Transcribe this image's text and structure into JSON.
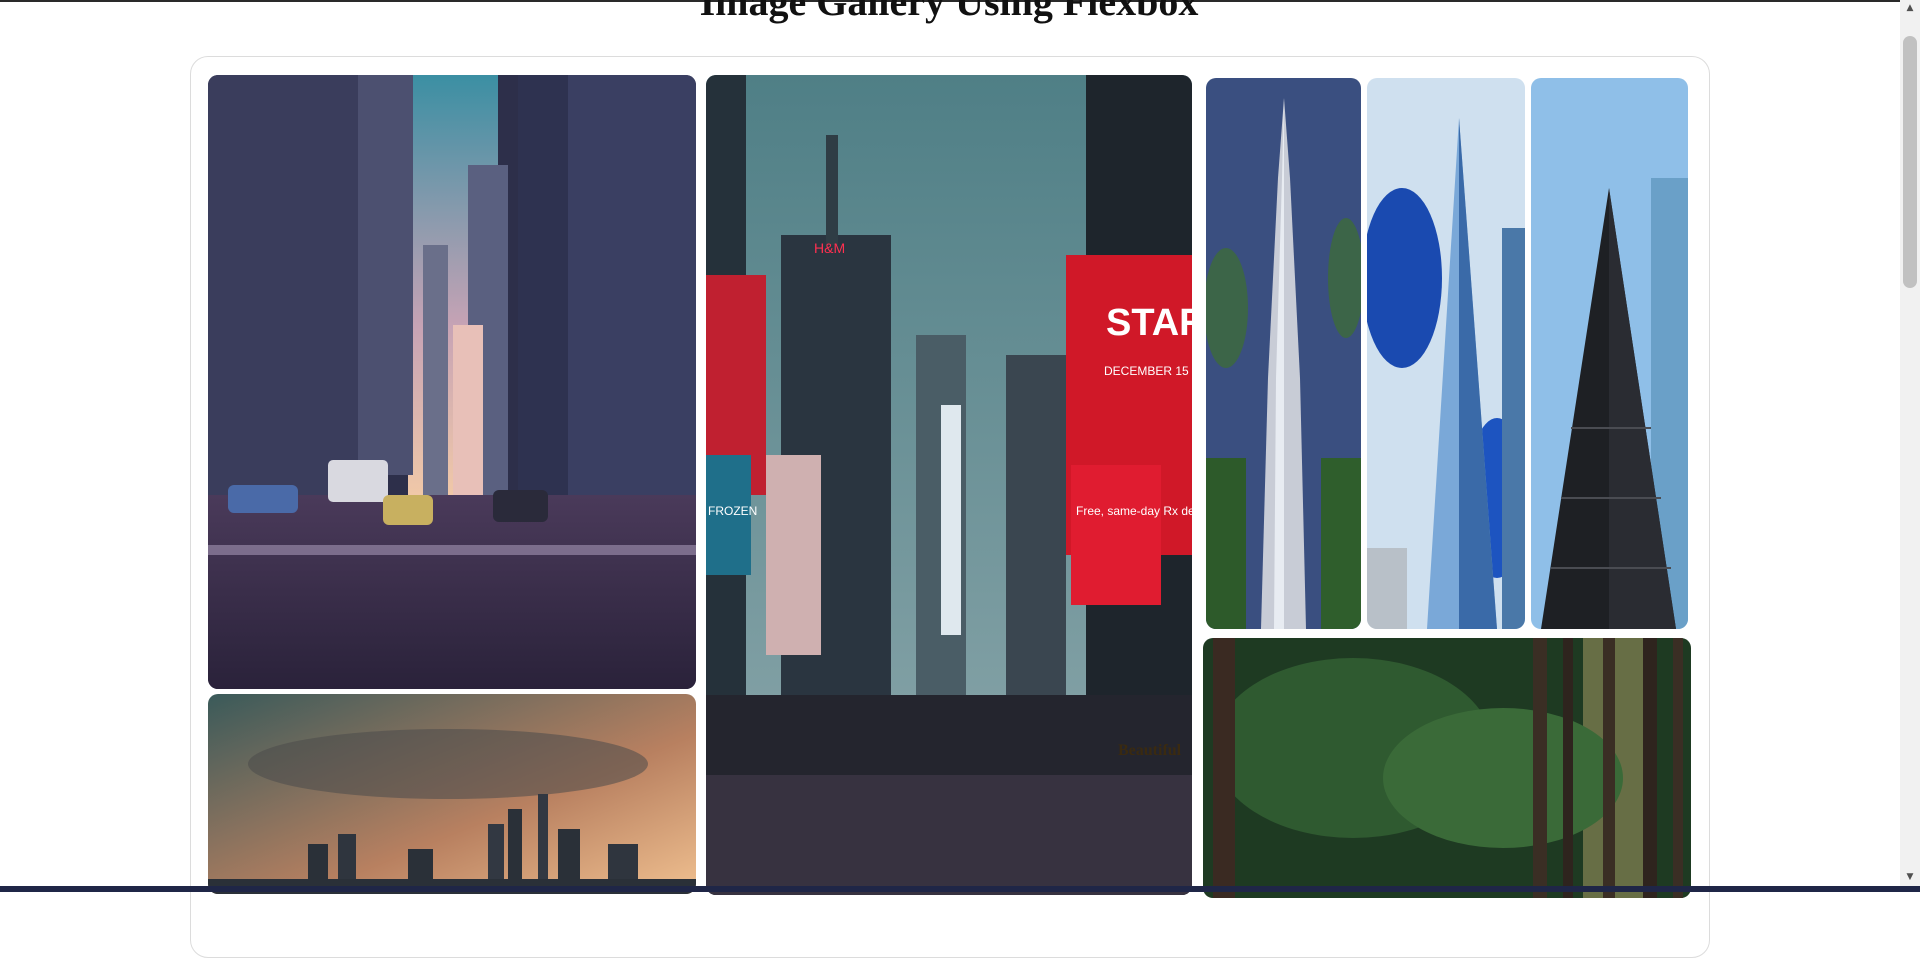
{
  "page": {
    "title": "Image Gallery Using Flexbox"
  },
  "gallery": {
    "images": [
      {
        "id": "city-street",
        "icon": "city-street-photo"
      },
      {
        "id": "times-square",
        "icon": "times-square-photo"
      },
      {
        "id": "burj-khalifa",
        "icon": "tower-photo"
      },
      {
        "id": "one-world-trade",
        "icon": "glass-tower-photo"
      },
      {
        "id": "dark-skyscraper",
        "icon": "skyscraper-photo"
      },
      {
        "id": "skyline-sunset",
        "icon": "skyline-photo"
      },
      {
        "id": "forest",
        "icon": "forest-photo"
      }
    ],
    "billboard_text": {
      "star_wars": "STAR WARS",
      "december": "DECEMBER 15",
      "ad": "Free, same-day Rx delivery in Manhattan.",
      "beautiful": "Beautiful",
      "hm": "H&M",
      "frozen": "FROZEN"
    }
  },
  "scrollbar": {
    "position_fraction": 0.0
  }
}
